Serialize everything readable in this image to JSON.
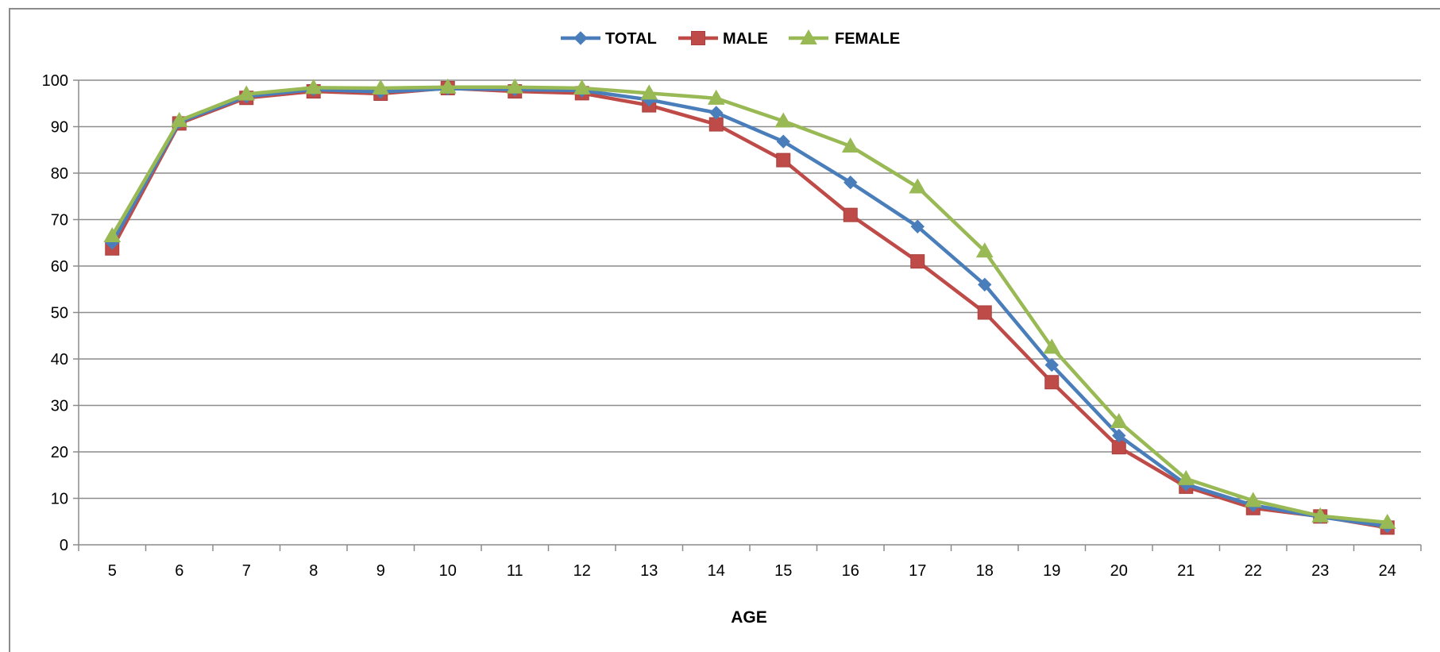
{
  "chart_data": {
    "type": "line",
    "title": "",
    "xlabel": "AGE",
    "ylabel": "",
    "x": [
      "5",
      "6",
      "7",
      "8",
      "9",
      "10",
      "11",
      "12",
      "13",
      "14",
      "15",
      "16",
      "17",
      "18",
      "19",
      "20",
      "21",
      "22",
      "23",
      "24"
    ],
    "ylim": [
      0,
      100
    ],
    "yticks": [
      "0",
      "10",
      "20",
      "30",
      "40",
      "50",
      "60",
      "70",
      "80",
      "90",
      "100"
    ],
    "grid": true,
    "legend_position": "top-center",
    "series": [
      {
        "name": "TOTAL",
        "color": "#4a7ebb",
        "marker": "diamond",
        "values": [
          65,
          91,
          96.5,
          98,
          97.5,
          98.2,
          98,
          97.8,
          95.8,
          93,
          86.8,
          78,
          68.5,
          56,
          38.7,
          23.5,
          13,
          8.5,
          6,
          4
        ]
      },
      {
        "name": "MALE",
        "color": "#be4b48",
        "marker": "square",
        "values": [
          63.8,
          90.7,
          96.2,
          97.6,
          97.1,
          98.3,
          97.6,
          97.2,
          94.6,
          90.5,
          82.8,
          71,
          61,
          50,
          35,
          21,
          12.5,
          7.9,
          6.1,
          3.7
        ]
      },
      {
        "name": "FEMALE",
        "color": "#98b954",
        "marker": "triangle",
        "values": [
          66.5,
          91.3,
          97,
          98.4,
          98.3,
          98.5,
          98.5,
          98.3,
          97.2,
          96.1,
          91.2,
          85.8,
          77,
          63.2,
          42.5,
          26.5,
          14.2,
          9.5,
          6.2,
          4.8
        ]
      }
    ]
  }
}
